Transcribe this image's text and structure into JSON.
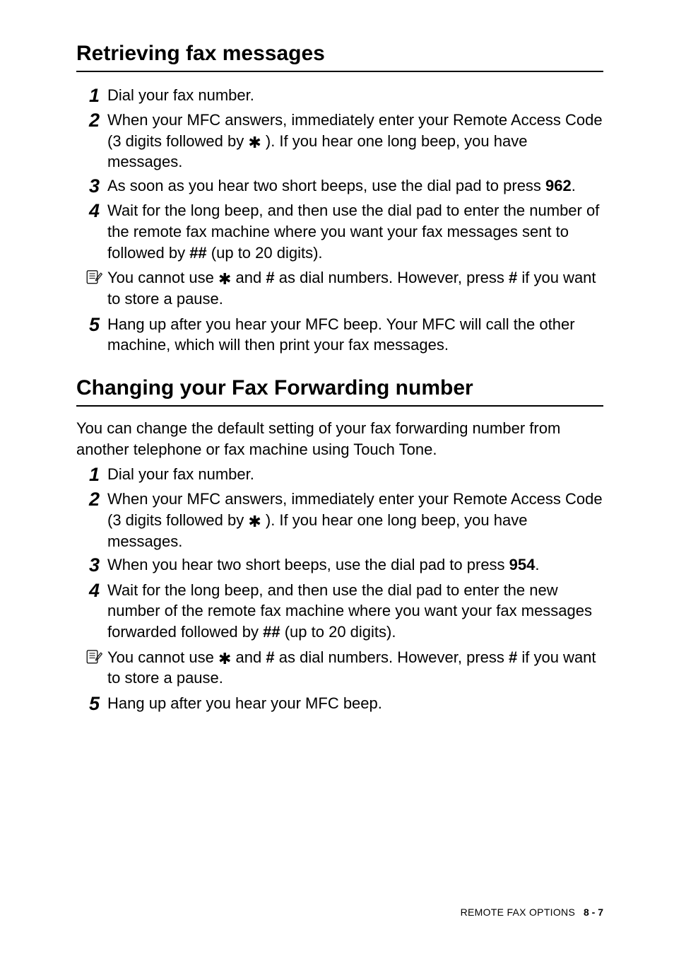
{
  "section1": {
    "heading": "Retrieving fax messages",
    "steps": [
      {
        "num": "1",
        "body": "Dial your fax number."
      },
      {
        "num": "2",
        "body_html": "When your MFC answers, immediately enter your Remote Access Code (3 digits followed by <span class=\"star-glyph\">✱</span> ). If you hear one long beep, you have messages."
      },
      {
        "num": "3",
        "body_html": "As soon as you hear two short beeps, use the dial pad to press <b>962</b>."
      },
      {
        "num": "4",
        "body_html": "Wait for the long beep, and then use the dial pad to enter the number of the remote fax machine where you want your fax messages sent to followed by <b>##</b> (up to 20 digits)."
      }
    ],
    "note_html": "You cannot use <span class=\"star-glyph\">✱</span> and <b>#</b> as dial numbers. However, press <b>#</b> if you want to store a pause.",
    "step5": {
      "num": "5",
      "body": "Hang up after you hear your MFC beep. Your MFC will call the other machine, which will then print your fax messages."
    }
  },
  "section2": {
    "heading": "Changing your Fax Forwarding number",
    "intro": "You can change the default setting of your fax forwarding number from another telephone or fax machine using Touch Tone.",
    "steps": [
      {
        "num": "1",
        "body": "Dial your fax number."
      },
      {
        "num": "2",
        "body_html": "When your MFC answers, immediately enter your Remote Access Code (3 digits followed by <span class=\"star-glyph\">✱</span> ). If you hear one long beep, you have messages."
      },
      {
        "num": "3",
        "body_html": "When you hear two short beeps, use the dial pad to press <b>954</b>."
      },
      {
        "num": "4",
        "body_html": "Wait for the long beep, and then use the dial pad to enter the new number of the remote fax machine where you want your fax messages forwarded followed by <b>##</b> (up to 20 digits)."
      }
    ],
    "note_html": "You cannot use <span class=\"star-glyph\">✱</span> and <b>#</b> as dial numbers. However, press <b>#</b> if you want to store a pause.",
    "step5": {
      "num": "5",
      "body": "Hang up after you hear your MFC beep."
    }
  },
  "footer": {
    "label": "REMOTE FAX OPTIONS",
    "page": "8 - 7"
  },
  "colors": {
    "text": "#000000",
    "background": "#ffffff",
    "rule": "#000000"
  }
}
